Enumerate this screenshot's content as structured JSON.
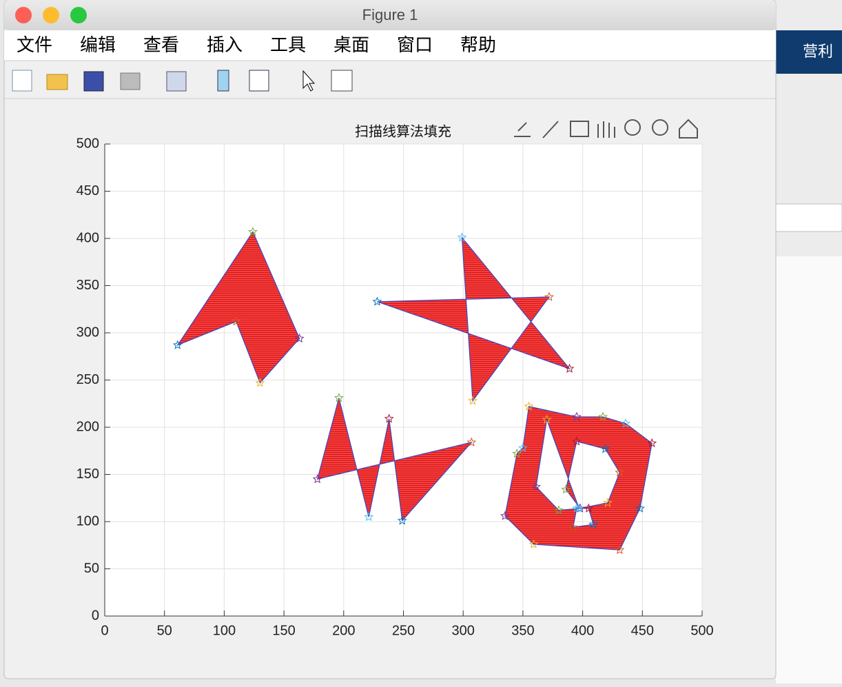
{
  "window": {
    "title": "Figure 1",
    "menu": [
      "文件",
      "编辑",
      "查看",
      "插入",
      "工具",
      "桌面",
      "窗口",
      "帮助"
    ]
  },
  "background": {
    "text": "营利"
  },
  "chart_data": {
    "type": "polygon",
    "title": "扫描线算法填充",
    "xlim": [
      0,
      500
    ],
    "ylim": [
      0,
      500
    ],
    "xticks": [
      0,
      50,
      100,
      150,
      200,
      250,
      300,
      350,
      400,
      450,
      500
    ],
    "yticks": [
      0,
      50,
      100,
      150,
      200,
      250,
      300,
      350,
      400,
      450,
      500
    ],
    "grid": true,
    "fill_color": "#ff3030",
    "edge_color": "#3a48c8",
    "marker_colors": [
      "#0072bd",
      "#d95319",
      "#edb120",
      "#7e2f8e",
      "#77ac30",
      "#4dbeee",
      "#a2142f"
    ],
    "polygons": [
      {
        "x": [
          61,
          110,
          130,
          163,
          124
        ],
        "y": [
          287,
          312,
          247,
          294,
          407
        ]
      },
      {
        "x": [
          299,
          389,
          228,
          372,
          308
        ],
        "y": [
          401,
          262,
          333,
          338,
          228
        ]
      },
      {
        "x": [
          178,
          196,
          221,
          238,
          249,
          307
        ],
        "y": [
          145,
          231,
          105,
          209,
          101,
          184
        ]
      },
      {
        "x": [
          355,
          395,
          417,
          436,
          458,
          448,
          431,
          359,
          335,
          345,
          350,
          null,
          395,
          419,
          431,
          421,
          398,
          386,
          null,
          395,
          405,
          409,
          392,
          null,
          370,
          361,
          380,
          397
        ],
        "y": [
          222,
          211,
          211,
          204,
          183,
          114,
          70,
          76,
          106,
          172,
          178,
          null,
          185,
          177,
          152,
          120,
          114,
          134,
          null,
          114,
          114,
          97,
          94,
          null,
          208,
          137,
          112,
          114
        ]
      }
    ]
  }
}
